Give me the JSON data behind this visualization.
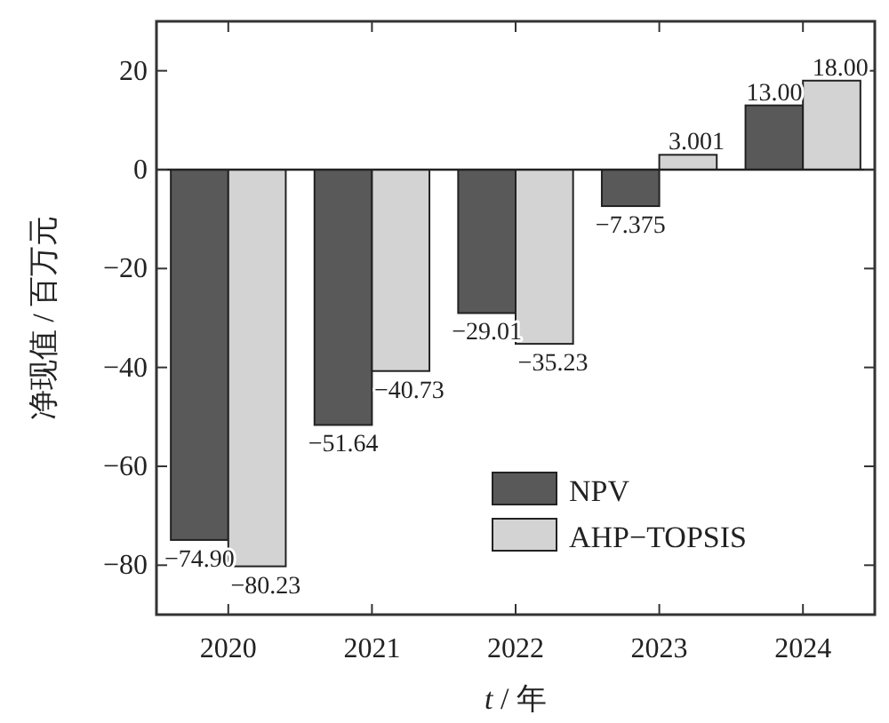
{
  "chart_data": {
    "type": "bar",
    "xlabel": "t / 年",
    "ylabel": "净现值 / 百万元",
    "categories": [
      "2020",
      "2021",
      "2022",
      "2023",
      "2024"
    ],
    "series": [
      {
        "name": "NPV",
        "color": "#595959",
        "values": [
          -74.9,
          -51.64,
          -29.01,
          -7.375,
          13.0
        ],
        "value_labels": [
          "−74.90",
          "−51.64",
          "−29.01",
          "−7.375",
          "13.00"
        ]
      },
      {
        "name": "AHP−TOPSIS",
        "color": "#d3d3d3",
        "values": [
          -80.23,
          -40.73,
          -35.23,
          3.001,
          18.0
        ],
        "value_labels": [
          "−80.23",
          "−40.73",
          "−35.23",
          "3.001",
          "18.00"
        ]
      }
    ],
    "ylim": [
      -90,
      30
    ],
    "yticks": [
      -80,
      -60,
      -40,
      -20,
      0,
      20
    ],
    "legend": "bottom right"
  }
}
